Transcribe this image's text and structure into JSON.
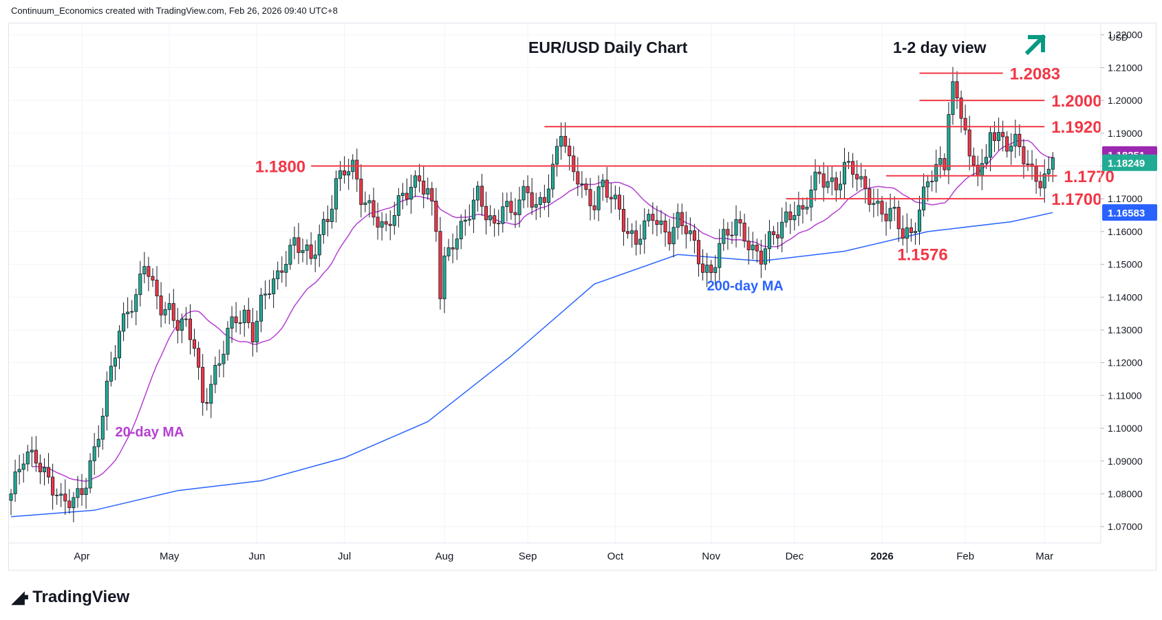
{
  "header": {
    "credit": "Continuum_Economics created with TradingView.com, Feb 26, 2026 09:40 UTC+8"
  },
  "footer": {
    "brand": "TradingView"
  },
  "chart_data": {
    "type": "candlestick",
    "title": "EUR/USD Daily Chart",
    "subtitle": "1-2 day view",
    "currency": "USD",
    "ylim": [
      1.065,
      1.2235
    ],
    "y_ticks": [
      "1.07000",
      "1.08000",
      "1.09000",
      "1.10000",
      "1.11000",
      "1.12000",
      "1.13000",
      "1.14000",
      "1.15000",
      "1.16000",
      "1.17000",
      "1.18000",
      "1.19000",
      "1.20000",
      "1.21000",
      "1.22000"
    ],
    "x_labels": [
      {
        "label": "Apr",
        "bar": 17
      },
      {
        "label": "May",
        "bar": 38
      },
      {
        "label": "Jun",
        "bar": 59
      },
      {
        "label": "Jul",
        "bar": 80
      },
      {
        "label": "Aug",
        "bar": 104
      },
      {
        "label": "Sep",
        "bar": 124
      },
      {
        "label": "Oct",
        "bar": 145
      },
      {
        "label": "Nov",
        "bar": 168
      },
      {
        "label": "Dec",
        "bar": 188
      },
      {
        "label": "2026",
        "bar": 209
      },
      {
        "label": "Feb",
        "bar": 229
      },
      {
        "label": "Mar",
        "bar": 248
      }
    ],
    "total_bars": 262,
    "ohlc_waypoints": [
      [
        0,
        1.08
      ],
      [
        3,
        1.09
      ],
      [
        6,
        1.092
      ],
      [
        9,
        1.085
      ],
      [
        12,
        1.076
      ],
      [
        15,
        1.078
      ],
      [
        18,
        1.085
      ],
      [
        20,
        1.093
      ],
      [
        22,
        1.103
      ],
      [
        24,
        1.118
      ],
      [
        26,
        1.13
      ],
      [
        28,
        1.138
      ],
      [
        30,
        1.139
      ],
      [
        32,
        1.15
      ],
      [
        34,
        1.142
      ],
      [
        36,
        1.138
      ],
      [
        38,
        1.137
      ],
      [
        40,
        1.132
      ],
      [
        42,
        1.13
      ],
      [
        44,
        1.125
      ],
      [
        46,
        1.108
      ],
      [
        48,
        1.115
      ],
      [
        50,
        1.12
      ],
      [
        52,
        1.128
      ],
      [
        54,
        1.133
      ],
      [
        56,
        1.135
      ],
      [
        58,
        1.13
      ],
      [
        60,
        1.138
      ],
      [
        62,
        1.142
      ],
      [
        64,
        1.145
      ],
      [
        66,
        1.153
      ],
      [
        68,
        1.158
      ],
      [
        70,
        1.155
      ],
      [
        72,
        1.15
      ],
      [
        74,
        1.158
      ],
      [
        76,
        1.165
      ],
      [
        78,
        1.176
      ],
      [
        80,
        1.179
      ],
      [
        82,
        1.178
      ],
      [
        84,
        1.17
      ],
      [
        86,
        1.168
      ],
      [
        88,
        1.165
      ],
      [
        90,
        1.16
      ],
      [
        92,
        1.165
      ],
      [
        94,
        1.17
      ],
      [
        96,
        1.175
      ],
      [
        98,
        1.177
      ],
      [
        100,
        1.172
      ],
      [
        102,
        1.16
      ],
      [
        103,
        1.14
      ],
      [
        104,
        1.15
      ],
      [
        106,
        1.158
      ],
      [
        108,
        1.162
      ],
      [
        110,
        1.166
      ],
      [
        112,
        1.17
      ],
      [
        114,
        1.165
      ],
      [
        116,
        1.162
      ],
      [
        118,
        1.17
      ],
      [
        120,
        1.165
      ],
      [
        122,
        1.168
      ],
      [
        124,
        1.172
      ],
      [
        126,
        1.168
      ],
      [
        128,
        1.172
      ],
      [
        130,
        1.178
      ],
      [
        132,
        1.19
      ],
      [
        134,
        1.18
      ],
      [
        136,
        1.178
      ],
      [
        138,
        1.172
      ],
      [
        140,
        1.168
      ],
      [
        142,
        1.173
      ],
      [
        144,
        1.17
      ],
      [
        146,
        1.168
      ],
      [
        148,
        1.16
      ],
      [
        150,
        1.157
      ],
      [
        152,
        1.16
      ],
      [
        154,
        1.165
      ],
      [
        156,
        1.162
      ],
      [
        158,
        1.16
      ],
      [
        160,
        1.163
      ],
      [
        162,
        1.16
      ],
      [
        164,
        1.155
      ],
      [
        166,
        1.15
      ],
      [
        168,
        1.148
      ],
      [
        170,
        1.156
      ],
      [
        172,
        1.158
      ],
      [
        174,
        1.162
      ],
      [
        176,
        1.16
      ],
      [
        178,
        1.155
      ],
      [
        180,
        1.152
      ],
      [
        182,
        1.156
      ],
      [
        184,
        1.16
      ],
      [
        186,
        1.165
      ],
      [
        188,
        1.168
      ],
      [
        190,
        1.165
      ],
      [
        192,
        1.172
      ],
      [
        194,
        1.177
      ],
      [
        196,
        1.176
      ],
      [
        198,
        1.175
      ],
      [
        200,
        1.179
      ],
      [
        202,
        1.178
      ],
      [
        204,
        1.174
      ],
      [
        206,
        1.172
      ],
      [
        208,
        1.168
      ],
      [
        210,
        1.165
      ],
      [
        212,
        1.164
      ],
      [
        214,
        1.159
      ],
      [
        216,
        1.16
      ],
      [
        218,
        1.168
      ],
      [
        220,
        1.175
      ],
      [
        222,
        1.178
      ],
      [
        224,
        1.18
      ],
      [
        225,
        1.198
      ],
      [
        226,
        1.205
      ],
      [
        227,
        1.201
      ],
      [
        228,
        1.198
      ],
      [
        229,
        1.192
      ],
      [
        230,
        1.18
      ],
      [
        232,
        1.178
      ],
      [
        234,
        1.18
      ],
      [
        235,
        1.192
      ],
      [
        237,
        1.19
      ],
      [
        239,
        1.187
      ],
      [
        241,
        1.186
      ],
      [
        243,
        1.182
      ],
      [
        245,
        1.178
      ],
      [
        247,
        1.177
      ],
      [
        249,
        1.1775
      ],
      [
        250,
        1.1825
      ]
    ],
    "last_index": 250,
    "series": [
      {
        "name": "20-day MA",
        "color": "#b53fd1",
        "window": 20
      },
      {
        "name": "200-day MA",
        "color": "#2962ff",
        "points": [
          [
            0,
            1.073
          ],
          [
            20,
            1.075
          ],
          [
            40,
            1.081
          ],
          [
            60,
            1.084
          ],
          [
            80,
            1.091
          ],
          [
            100,
            1.102
          ],
          [
            120,
            1.122
          ],
          [
            140,
            1.144
          ],
          [
            160,
            1.153
          ],
          [
            180,
            1.151
          ],
          [
            200,
            1.154
          ],
          [
            220,
            1.16
          ],
          [
            240,
            1.163
          ],
          [
            250,
            1.1658
          ]
        ]
      }
    ],
    "levels": [
      {
        "label": "1.2083",
        "value": 1.2083,
        "from_bar": 218,
        "to_bar": 238,
        "label_side": "right"
      },
      {
        "label": "1.2000",
        "value": 1.2,
        "from_bar": 218,
        "to_bar": 248,
        "label_side": "right"
      },
      {
        "label": "1.1920",
        "value": 1.192,
        "from_bar": 128,
        "to_bar": 248,
        "label_side": "right"
      },
      {
        "label": "1.1800",
        "value": 1.18,
        "from_bar": 72,
        "to_bar": 248,
        "label_side": "left"
      },
      {
        "label": "1.1770",
        "value": 1.177,
        "from_bar": 210,
        "to_bar": 251,
        "label_side": "right"
      },
      {
        "label": "1.1700",
        "value": 1.17,
        "from_bar": 186,
        "to_bar": 248,
        "label_side": "right"
      }
    ],
    "annotations": [
      {
        "label": "1.1576",
        "value": 1.1576,
        "bar": 214,
        "color": "#f23645"
      },
      {
        "label": "20-day MA",
        "color": "#b53fd1"
      },
      {
        "label": "200-day MA",
        "color": "#2962ff"
      }
    ],
    "price_tags": [
      {
        "label": "1.18251",
        "color": "#9c27b0"
      },
      {
        "label": "1.18249",
        "color": "#22ab94"
      },
      {
        "label": "1.16583",
        "color": "#2962ff"
      }
    ],
    "colors": {
      "up": "#22ab94",
      "down": "#f23645",
      "level": "#f23645",
      "outline": "#131722",
      "arrow": "#089981"
    }
  }
}
